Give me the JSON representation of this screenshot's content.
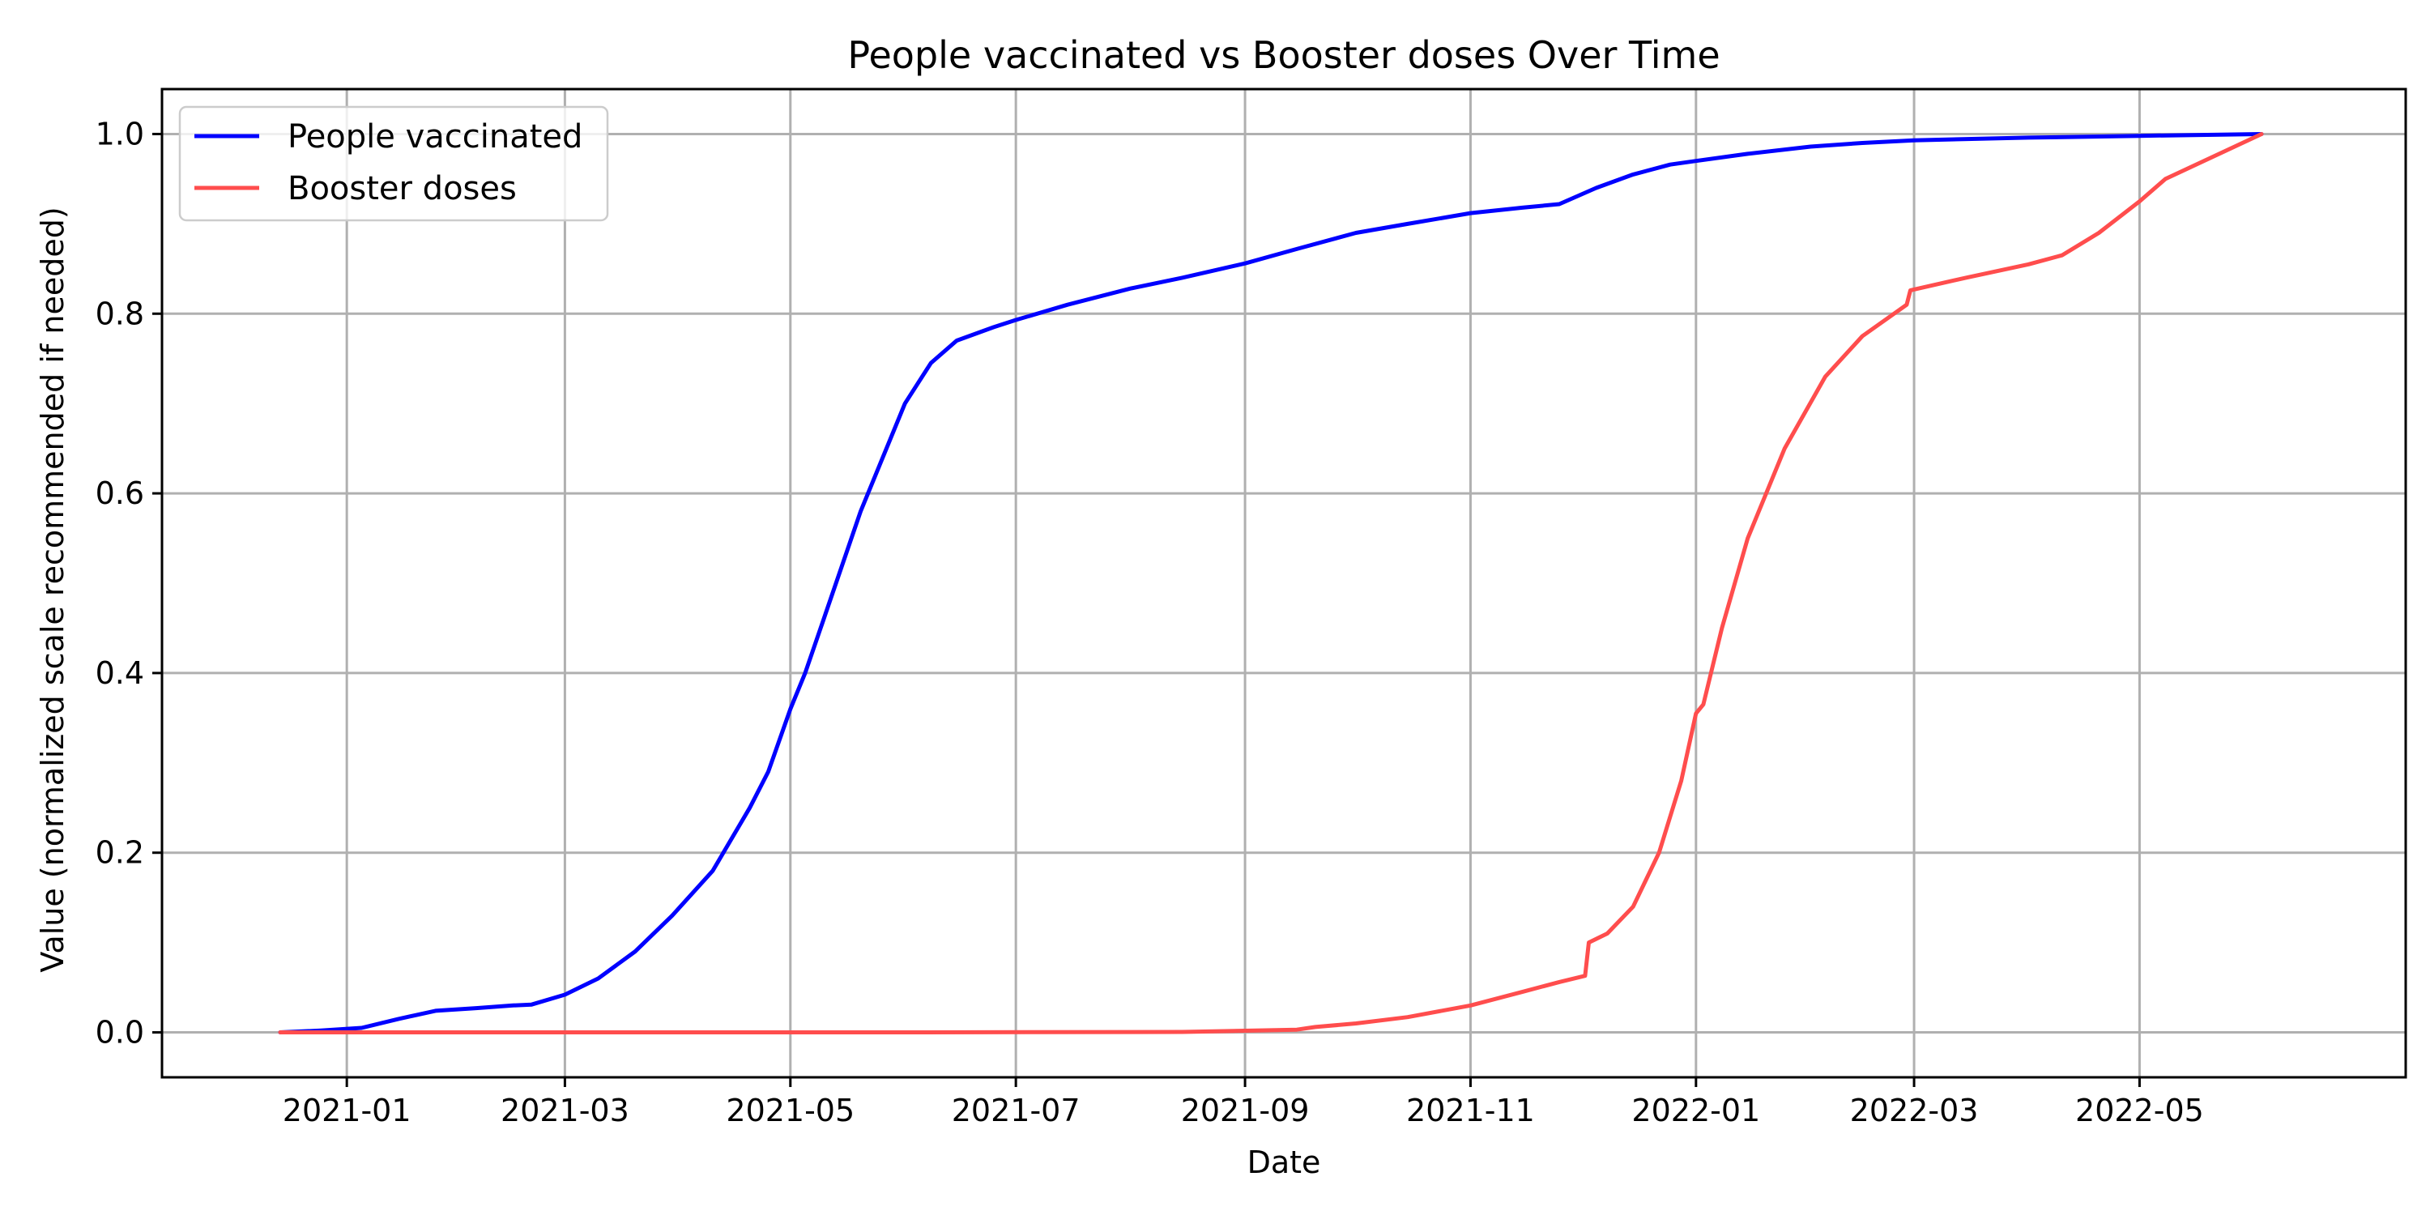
{
  "chart_data": {
    "type": "line",
    "title": "People vaccinated vs Booster doses Over Time",
    "xlabel": "Date",
    "ylabel": "Value (normalized scale recommended if needed)",
    "x_range": [
      "2020-11-12",
      "2022-07-12"
    ],
    "ylim": [
      -0.05,
      1.05
    ],
    "x_ticks": [
      {
        "date": "2021-01-01",
        "label": "2021-01"
      },
      {
        "date": "2021-03-01",
        "label": "2021-03"
      },
      {
        "date": "2021-05-01",
        "label": "2021-05"
      },
      {
        "date": "2021-07-01",
        "label": "2021-07"
      },
      {
        "date": "2021-09-01",
        "label": "2021-09"
      },
      {
        "date": "2021-11-01",
        "label": "2021-11"
      },
      {
        "date": "2022-01-01",
        "label": "2022-01"
      },
      {
        "date": "2022-03-01",
        "label": "2022-03"
      },
      {
        "date": "2022-05-01",
        "label": "2022-05"
      }
    ],
    "y_ticks": [
      0.0,
      0.2,
      0.4,
      0.6,
      0.8,
      1.0
    ],
    "y_tick_labels": [
      "0.0",
      "0.2",
      "0.4",
      "0.6",
      "0.8",
      "1.0"
    ],
    "grid": true,
    "legend_position": "top-left",
    "series": [
      {
        "name": "People vaccinated",
        "color": "#0000ff",
        "points": [
          [
            "2020-12-14",
            0.0
          ],
          [
            "2020-12-25",
            0.002
          ],
          [
            "2021-01-05",
            0.005
          ],
          [
            "2021-01-15",
            0.015
          ],
          [
            "2021-01-25",
            0.024
          ],
          [
            "2021-02-05",
            0.027
          ],
          [
            "2021-02-15",
            0.03
          ],
          [
            "2021-02-20",
            0.031
          ],
          [
            "2021-03-01",
            0.042
          ],
          [
            "2021-03-10",
            0.06
          ],
          [
            "2021-03-20",
            0.09
          ],
          [
            "2021-03-30",
            0.13
          ],
          [
            "2021-04-10",
            0.18
          ],
          [
            "2021-04-20",
            0.25
          ],
          [
            "2021-04-25",
            0.29
          ],
          [
            "2021-05-01",
            0.36
          ],
          [
            "2021-05-05",
            0.4
          ],
          [
            "2021-05-10",
            0.46
          ],
          [
            "2021-05-15",
            0.52
          ],
          [
            "2021-05-20",
            0.58
          ],
          [
            "2021-05-25",
            0.63
          ],
          [
            "2021-06-01",
            0.7
          ],
          [
            "2021-06-08",
            0.745
          ],
          [
            "2021-06-15",
            0.77
          ],
          [
            "2021-06-25",
            0.785
          ],
          [
            "2021-07-01",
            0.793
          ],
          [
            "2021-07-15",
            0.81
          ],
          [
            "2021-08-01",
            0.828
          ],
          [
            "2021-08-15",
            0.84
          ],
          [
            "2021-09-01",
            0.856
          ],
          [
            "2021-09-15",
            0.872
          ],
          [
            "2021-10-01",
            0.89
          ],
          [
            "2021-10-15",
            0.9
          ],
          [
            "2021-11-01",
            0.912
          ],
          [
            "2021-11-15",
            0.918
          ],
          [
            "2021-11-25",
            0.922
          ],
          [
            "2021-12-05",
            0.94
          ],
          [
            "2021-12-15",
            0.955
          ],
          [
            "2021-12-25",
            0.966
          ],
          [
            "2022-01-01",
            0.97
          ],
          [
            "2022-01-15",
            0.978
          ],
          [
            "2022-02-01",
            0.986
          ],
          [
            "2022-02-15",
            0.99
          ],
          [
            "2022-03-01",
            0.993
          ],
          [
            "2022-04-01",
            0.996
          ],
          [
            "2022-05-01",
            0.998
          ],
          [
            "2022-06-03",
            1.0
          ]
        ]
      },
      {
        "name": "Booster doses",
        "color": "#ff4d4d",
        "points": [
          [
            "2020-12-14",
            0.0
          ],
          [
            "2021-06-01",
            0.0
          ],
          [
            "2021-08-15",
            0.0005
          ],
          [
            "2021-09-15",
            0.003
          ],
          [
            "2021-09-20",
            0.006
          ],
          [
            "2021-10-01",
            0.01
          ],
          [
            "2021-10-15",
            0.017
          ],
          [
            "2021-11-01",
            0.03
          ],
          [
            "2021-11-15",
            0.045
          ],
          [
            "2021-11-25",
            0.056
          ],
          [
            "2021-12-02",
            0.063
          ],
          [
            "2021-12-03",
            0.1
          ],
          [
            "2021-12-08",
            0.11
          ],
          [
            "2021-12-15",
            0.14
          ],
          [
            "2021-12-22",
            0.2
          ],
          [
            "2021-12-28",
            0.28
          ],
          [
            "2022-01-01",
            0.355
          ],
          [
            "2022-01-03",
            0.365
          ],
          [
            "2022-01-08",
            0.45
          ],
          [
            "2022-01-15",
            0.55
          ],
          [
            "2022-01-25",
            0.65
          ],
          [
            "2022-02-05",
            0.73
          ],
          [
            "2022-02-15",
            0.775
          ],
          [
            "2022-02-27",
            0.81
          ],
          [
            "2022-02-28",
            0.826
          ],
          [
            "2022-03-15",
            0.84
          ],
          [
            "2022-04-01",
            0.855
          ],
          [
            "2022-04-10",
            0.865
          ],
          [
            "2022-04-20",
            0.89
          ],
          [
            "2022-05-01",
            0.925
          ],
          [
            "2022-05-08",
            0.95
          ],
          [
            "2022-06-03",
            1.0
          ]
        ]
      }
    ]
  }
}
